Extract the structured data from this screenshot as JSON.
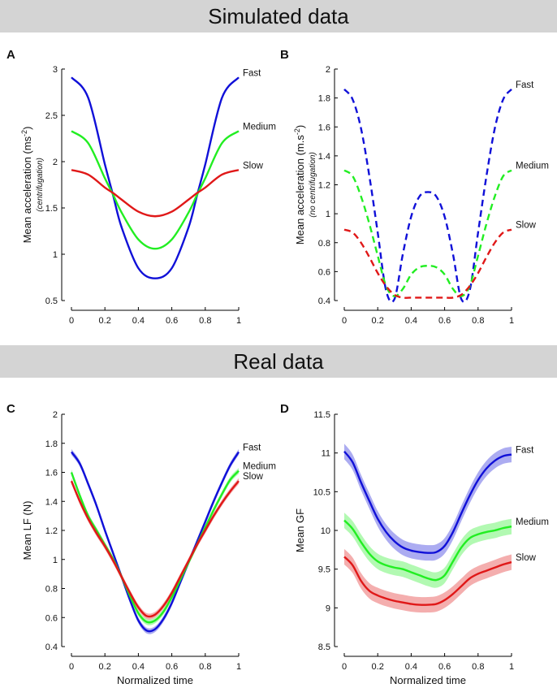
{
  "banners": {
    "top": "Simulated data",
    "middle": "Real data"
  },
  "colors": {
    "fast": "#1010d8",
    "medium": "#22ee22",
    "slow": "#e01818",
    "axis": "#000000"
  },
  "chart_data": [
    {
      "id": "A",
      "panel_label": "A",
      "type": "line",
      "ylabel": "Mean acceleration (ms-2)",
      "ylabel_main": "Mean acceleration (ms",
      "ylabel_sup": "-2",
      "ylabel_close": ")",
      "ylabel_sub": "(centrifugation)",
      "xlabel": "",
      "xlim": [
        0,
        1
      ],
      "ylim": [
        0.5,
        3
      ],
      "xticks": [
        "0",
        "0.2",
        "0.4",
        "0.6",
        "0.8",
        "1"
      ],
      "yticks": [
        "0.5",
        "1",
        "1.5",
        "2",
        "2.5",
        "3"
      ],
      "series": [
        {
          "name": "Fast",
          "color": "#1010d8",
          "style": "solid",
          "x": [
            0,
            0.1,
            0.2,
            0.25,
            0.3,
            0.4,
            0.5,
            0.6,
            0.7,
            0.75,
            0.8,
            0.9,
            1
          ],
          "y": [
            2.91,
            2.69,
            1.97,
            1.63,
            1.29,
            0.85,
            0.74,
            0.85,
            1.29,
            1.63,
            1.97,
            2.69,
            2.91
          ]
        },
        {
          "name": "Medium",
          "color": "#22ee22",
          "style": "solid",
          "x": [
            0,
            0.1,
            0.2,
            0.25,
            0.3,
            0.4,
            0.5,
            0.6,
            0.7,
            0.75,
            0.8,
            0.9,
            1
          ],
          "y": [
            2.33,
            2.2,
            1.82,
            1.64,
            1.45,
            1.16,
            1.06,
            1.16,
            1.45,
            1.64,
            1.82,
            2.2,
            2.33
          ]
        },
        {
          "name": "Slow",
          "color": "#e01818",
          "style": "solid",
          "x": [
            0,
            0.1,
            0.2,
            0.25,
            0.3,
            0.4,
            0.5,
            0.6,
            0.7,
            0.75,
            0.8,
            0.9,
            1
          ],
          "y": [
            1.91,
            1.86,
            1.72,
            1.66,
            1.59,
            1.46,
            1.41,
            1.46,
            1.59,
            1.66,
            1.72,
            1.86,
            1.91
          ]
        }
      ]
    },
    {
      "id": "B",
      "panel_label": "B",
      "type": "line",
      "ylabel": "Mean acceleration (m.s-2)",
      "ylabel_main": "Mean acceleration (m.s",
      "ylabel_sup": "-2",
      "ylabel_close": ")",
      "ylabel_sub": "(no centrifugation)",
      "xlabel": "",
      "xlim": [
        0,
        1
      ],
      "ylim": [
        0.4,
        2
      ],
      "xticks": [
        "0",
        "0.2",
        "0.4",
        "0.6",
        "0.8",
        "1"
      ],
      "yticks": [
        "0.4",
        "0.6",
        "0.8",
        "1",
        "1.2",
        "1.4",
        "1.6",
        "1.8",
        "2"
      ],
      "series": [
        {
          "name": "Fast",
          "color": "#1010d8",
          "style": "dashed",
          "x": [
            0,
            0.05,
            0.1,
            0.15,
            0.2,
            0.25,
            0.3,
            0.35,
            0.4,
            0.45,
            0.5,
            0.55,
            0.6,
            0.65,
            0.7,
            0.75,
            0.8,
            0.85,
            0.9,
            0.95,
            1
          ],
          "y": [
            1.86,
            1.79,
            1.59,
            1.26,
            0.87,
            0.47,
            0.41,
            0.72,
            0.98,
            1.12,
            1.15,
            1.12,
            0.98,
            0.72,
            0.41,
            0.47,
            0.87,
            1.26,
            1.59,
            1.79,
            1.86
          ]
        },
        {
          "name": "Medium",
          "color": "#22ee22",
          "style": "dashed",
          "x": [
            0,
            0.05,
            0.1,
            0.15,
            0.2,
            0.25,
            0.3,
            0.35,
            0.4,
            0.45,
            0.5,
            0.55,
            0.6,
            0.65,
            0.7,
            0.75,
            0.8,
            0.85,
            0.9,
            0.95,
            1
          ],
          "y": [
            1.3,
            1.26,
            1.12,
            0.93,
            0.71,
            0.5,
            0.43,
            0.48,
            0.58,
            0.63,
            0.64,
            0.63,
            0.58,
            0.48,
            0.43,
            0.5,
            0.71,
            0.93,
            1.12,
            1.26,
            1.3
          ]
        },
        {
          "name": "Slow",
          "color": "#e01818",
          "style": "dashed",
          "x": [
            0,
            0.05,
            0.1,
            0.15,
            0.2,
            0.25,
            0.3,
            0.35,
            0.4,
            0.45,
            0.5,
            0.55,
            0.6,
            0.65,
            0.7,
            0.75,
            0.8,
            0.85,
            0.9,
            0.95,
            1
          ],
          "y": [
            0.89,
            0.87,
            0.8,
            0.7,
            0.59,
            0.5,
            0.44,
            0.42,
            0.42,
            0.42,
            0.42,
            0.42,
            0.42,
            0.42,
            0.44,
            0.5,
            0.59,
            0.7,
            0.8,
            0.87,
            0.89
          ]
        }
      ]
    },
    {
      "id": "C",
      "panel_label": "C",
      "type": "line",
      "ylabel": "Mean LF (N)",
      "ylabel_sub": "",
      "xlabel": "Normalized time",
      "xlim": [
        0,
        1
      ],
      "ylim": [
        0.4,
        2
      ],
      "xticks": [
        "0",
        "0.2",
        "0.4",
        "0.6",
        "0.8",
        "1"
      ],
      "yticks": [
        "0.4",
        "0.6",
        "0.8",
        "1",
        "1.2",
        "1.4",
        "1.6",
        "1.8",
        "2"
      ],
      "series": [
        {
          "name": "Fast",
          "color": "#1010d8",
          "style": "solid",
          "band": 0.02,
          "x": [
            0,
            0.05,
            0.1,
            0.15,
            0.2,
            0.25,
            0.3,
            0.35,
            0.4,
            0.45,
            0.5,
            0.55,
            0.6,
            0.65,
            0.7,
            0.75,
            0.8,
            0.85,
            0.9,
            0.95,
            1
          ],
          "y": [
            1.74,
            1.66,
            1.52,
            1.37,
            1.2,
            1.04,
            0.88,
            0.72,
            0.58,
            0.51,
            0.52,
            0.59,
            0.7,
            0.84,
            0.98,
            1.12,
            1.26,
            1.4,
            1.53,
            1.65,
            1.74
          ]
        },
        {
          "name": "Medium",
          "color": "#22ee22",
          "style": "solid",
          "band": 0.02,
          "x": [
            0,
            0.05,
            0.1,
            0.15,
            0.2,
            0.25,
            0.3,
            0.35,
            0.4,
            0.45,
            0.5,
            0.55,
            0.6,
            0.65,
            0.7,
            0.75,
            0.8,
            0.85,
            0.9,
            0.95,
            1
          ],
          "y": [
            1.6,
            1.44,
            1.3,
            1.2,
            1.1,
            1.0,
            0.88,
            0.75,
            0.63,
            0.57,
            0.58,
            0.64,
            0.74,
            0.86,
            0.98,
            1.1,
            1.22,
            1.34,
            1.45,
            1.55,
            1.61
          ]
        },
        {
          "name": "Slow",
          "color": "#e01818",
          "style": "solid",
          "band": 0.02,
          "x": [
            0,
            0.05,
            0.1,
            0.15,
            0.2,
            0.25,
            0.3,
            0.35,
            0.4,
            0.45,
            0.5,
            0.55,
            0.6,
            0.65,
            0.7,
            0.75,
            0.8,
            0.85,
            0.9,
            0.95,
            1
          ],
          "y": [
            1.54,
            1.4,
            1.28,
            1.18,
            1.09,
            0.99,
            0.88,
            0.77,
            0.67,
            0.61,
            0.62,
            0.68,
            0.77,
            0.88,
            0.99,
            1.1,
            1.2,
            1.3,
            1.39,
            1.47,
            1.54
          ]
        }
      ]
    },
    {
      "id": "D",
      "panel_label": "D",
      "type": "line",
      "ylabel": "Mean GF",
      "ylabel_sub": "",
      "xlabel": "Normalized time",
      "xlim": [
        0,
        1
      ],
      "ylim": [
        8.5,
        11.5
      ],
      "xticks": [
        "0",
        "0.2",
        "0.4",
        "0.6",
        "0.8",
        "1"
      ],
      "yticks": [
        "8.5",
        "9",
        "9.5",
        "10",
        "10.5",
        "11",
        "11.5"
      ],
      "series": [
        {
          "name": "Fast",
          "color": "#1010d8",
          "style": "solid",
          "band": 0.1,
          "x": [
            0,
            0.05,
            0.1,
            0.15,
            0.2,
            0.25,
            0.3,
            0.35,
            0.4,
            0.45,
            0.5,
            0.55,
            0.6,
            0.65,
            0.7,
            0.75,
            0.8,
            0.85,
            0.9,
            0.95,
            1
          ],
          "y": [
            11.02,
            10.88,
            10.62,
            10.38,
            10.15,
            9.98,
            9.86,
            9.78,
            9.74,
            9.72,
            9.71,
            9.72,
            9.8,
            9.98,
            10.22,
            10.45,
            10.65,
            10.8,
            10.9,
            10.96,
            10.98
          ]
        },
        {
          "name": "Medium",
          "color": "#22ee22",
          "style": "solid",
          "band": 0.1,
          "x": [
            0,
            0.05,
            0.1,
            0.15,
            0.2,
            0.25,
            0.3,
            0.35,
            0.4,
            0.45,
            0.5,
            0.55,
            0.6,
            0.65,
            0.7,
            0.75,
            0.8,
            0.85,
            0.9,
            0.95,
            1
          ],
          "y": [
            10.13,
            10.02,
            9.85,
            9.7,
            9.6,
            9.55,
            9.52,
            9.5,
            9.46,
            9.42,
            9.38,
            9.36,
            9.42,
            9.6,
            9.78,
            9.9,
            9.95,
            9.98,
            10.0,
            10.03,
            10.05
          ]
        },
        {
          "name": "Slow",
          "color": "#e01818",
          "style": "solid",
          "band": 0.1,
          "x": [
            0,
            0.05,
            0.1,
            0.15,
            0.2,
            0.25,
            0.3,
            0.35,
            0.4,
            0.45,
            0.5,
            0.55,
            0.6,
            0.65,
            0.7,
            0.75,
            0.8,
            0.85,
            0.9,
            0.95,
            1
          ],
          "y": [
            9.66,
            9.55,
            9.35,
            9.22,
            9.16,
            9.12,
            9.09,
            9.07,
            9.05,
            9.04,
            9.04,
            9.05,
            9.1,
            9.18,
            9.28,
            9.38,
            9.44,
            9.48,
            9.52,
            9.56,
            9.59
          ]
        }
      ]
    }
  ]
}
